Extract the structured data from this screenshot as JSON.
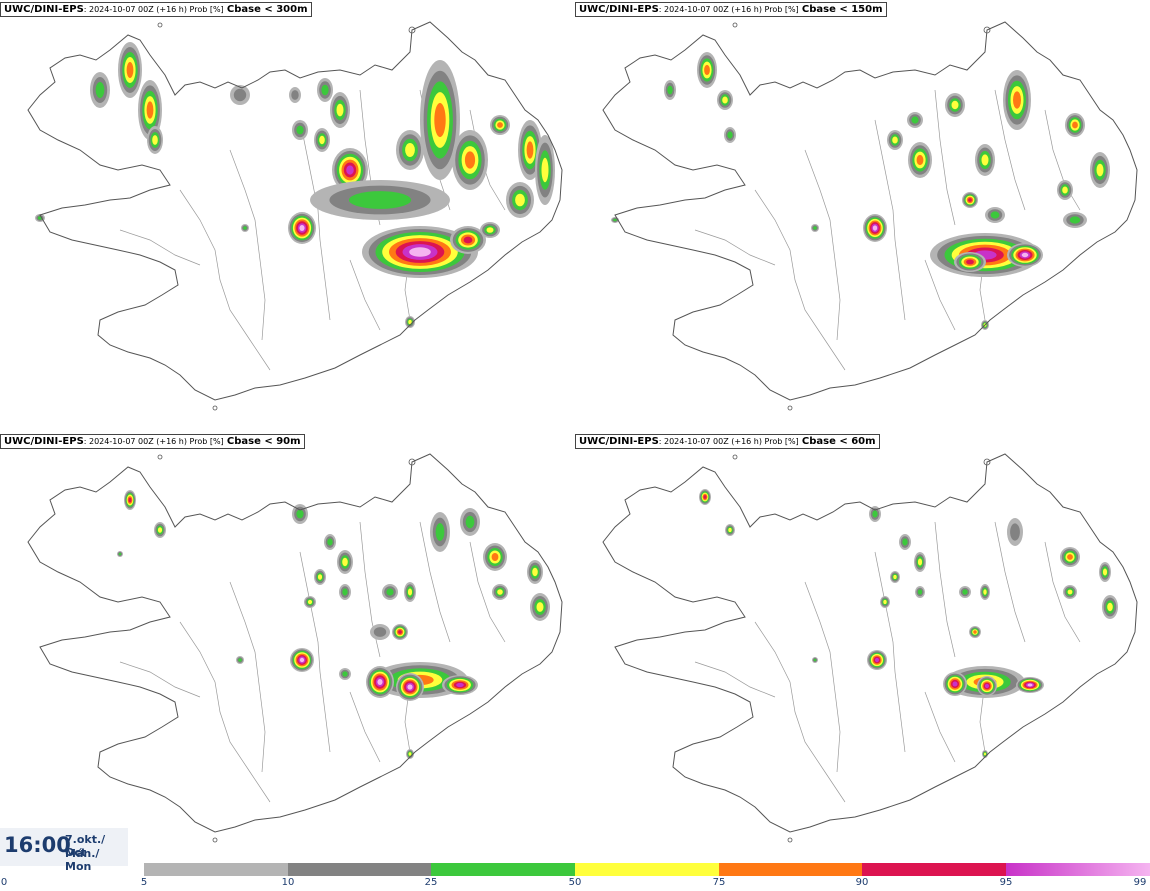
{
  "panels": [
    {
      "model": "UWC/DINI-EPS",
      "meta": ": 2024-10-07 00Z (+16 h) Prob [%]",
      "variable": "Cbase < 300m"
    },
    {
      "model": "UWC/DINI-EPS",
      "meta": ": 2024-10-07 00Z (+16 h) Prob [%]",
      "variable": "Cbase < 150m"
    },
    {
      "model": "UWC/DINI-EPS",
      "meta": ": 2024-10-07 00Z (+16 h) Prob [%]",
      "variable": "Cbase < 90m"
    },
    {
      "model": "UWC/DINI-EPS",
      "meta": ": 2024-10-07 00Z (+16 h) Prob [%]",
      "variable": "Cbase < 60m"
    }
  ],
  "valid_time": {
    "time": "16:00",
    "date_line1": "7.okt./ Oct",
    "date_line2": "Mán./ Mon"
  },
  "legend": {
    "ticks": [
      "0",
      "5",
      "10",
      "25",
      "50",
      "75",
      "90",
      "95",
      "99"
    ],
    "colors": [
      "#ffffff",
      "#b4b4b4",
      "#828282",
      "#3cc83c",
      "#ffff3c",
      "#ff7814",
      "#dc1450",
      "#c832c8",
      "#f5b4f0"
    ]
  },
  "map": {
    "region": "Iceland",
    "colors": {
      "coast": "#555555",
      "rivers": "#9a9a9a",
      "land": "#ffffff"
    }
  }
}
